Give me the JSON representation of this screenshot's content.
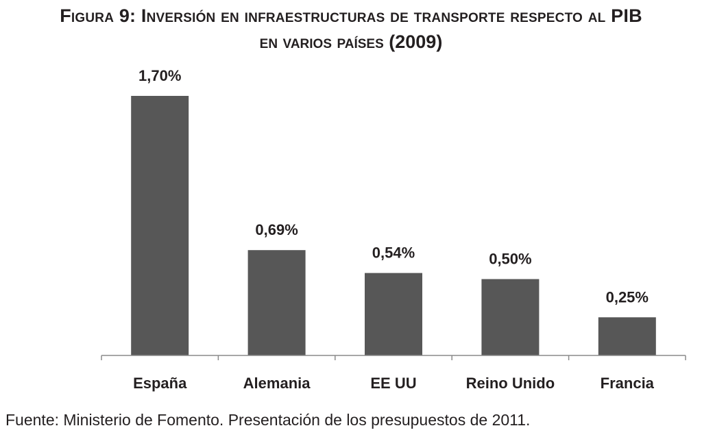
{
  "title_line1": "Figura 9: Inversión en infraestructuras de transporte respecto al PIB",
  "title_line2": "en varios países (2009)",
  "chart_data": {
    "type": "bar",
    "title": "Figura 9: Inversión en infraestructuras de transporte respecto al PIB en varios países (2009)",
    "categories": [
      "España",
      "Alemania",
      "EE UU",
      "Reino Unido",
      "Francia"
    ],
    "values": [
      1.7,
      0.69,
      0.54,
      0.5,
      0.25
    ],
    "data_labels": [
      "1,70%",
      "0,69%",
      "0,54%",
      "0,50%",
      "0,25%"
    ],
    "xlabel": "",
    "ylabel": "",
    "ylim": [
      0,
      1.7
    ],
    "grid": false,
    "bar_color": "#575757"
  },
  "source": "Fuente: Ministerio de Fomento. Presentación de los presupuestos de 2011."
}
